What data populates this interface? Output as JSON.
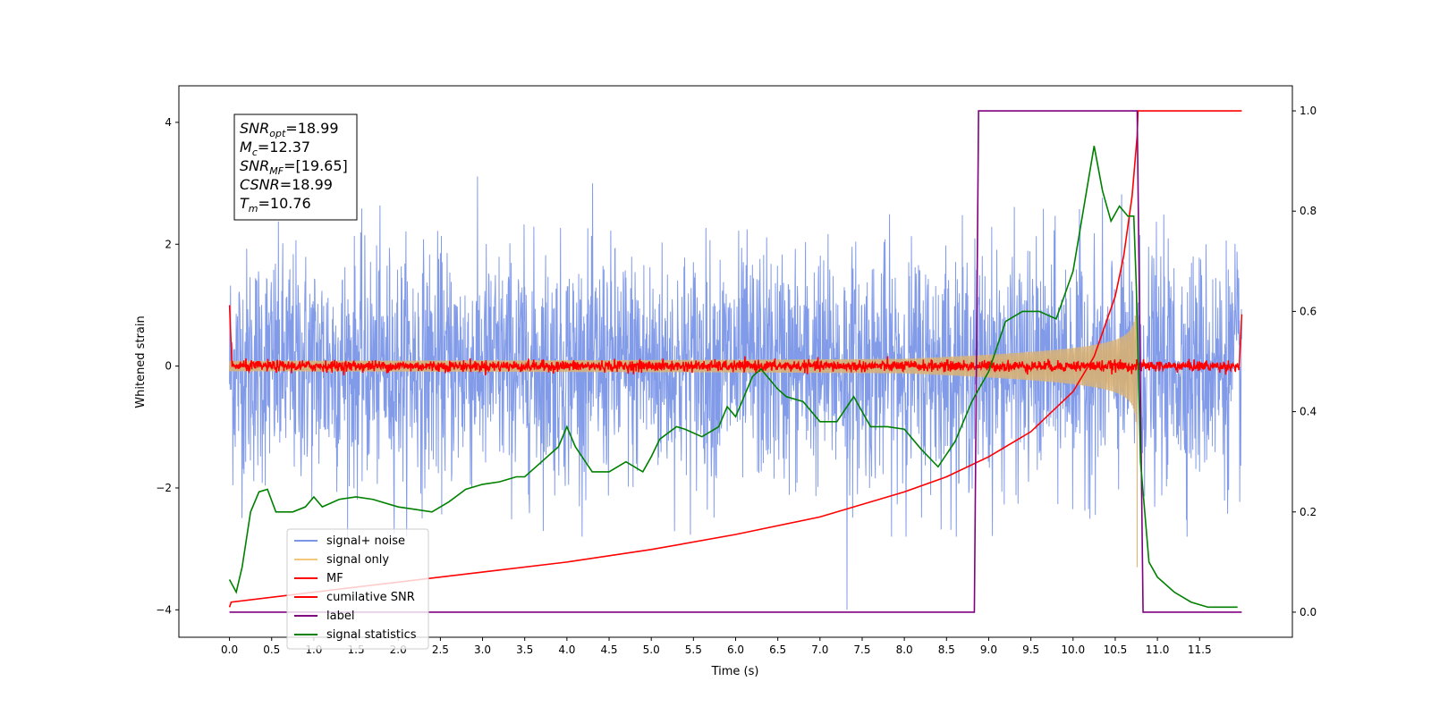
{
  "chart_data": {
    "type": "line",
    "title": "",
    "xlabel": "Time (s)",
    "ylabel": "Whitened strain",
    "y2label": "",
    "xlim": [
      -0.6,
      12.6
    ],
    "ylim": [
      -4.45,
      4.6
    ],
    "y2lim": [
      -0.05,
      1.05
    ],
    "x_ticks": [
      "0.0",
      "0.5",
      "1.0",
      "1.5",
      "2.0",
      "2.5",
      "3.0",
      "3.5",
      "4.0",
      "4.5",
      "5.0",
      "5.5",
      "6.0",
      "6.5",
      "7.0",
      "7.5",
      "8.0",
      "8.5",
      "9.0",
      "9.5",
      "10.0",
      "10.5",
      "11.0",
      "11.5"
    ],
    "y_ticks": [
      -4,
      -2,
      0,
      2,
      4
    ],
    "y2_ticks": [
      "0.0",
      "0.2",
      "0.4",
      "0.6",
      "0.8",
      "1.0"
    ],
    "grid": false,
    "legend_position": "lower-left",
    "annotation": {
      "lines": [
        {
          "sym": "SNR",
          "sub": "opt",
          "val": "=18.99"
        },
        {
          "sym": "M",
          "sub": "c",
          "val": "=12.37"
        },
        {
          "sym": "SNR",
          "sub": "MF",
          "val": "=[19.65]"
        },
        {
          "sym": "CSNR",
          "sub": "",
          "val": "=18.99"
        },
        {
          "sym": "T",
          "sub": "m",
          "val": "=10.76"
        }
      ]
    },
    "series": [
      {
        "name": "signal+ noise",
        "color": "#7b96e8",
        "axis": "left",
        "kind": "noise",
        "x_range": [
          0.0,
          12.0
        ],
        "envelope": [
          -2.6,
          3.4
        ]
      },
      {
        "name": "signal only",
        "color": "#f5c77a",
        "axis": "left",
        "kind": "chirp",
        "x_range": [
          0.0,
          10.76
        ],
        "amplitude_end": 3.3
      },
      {
        "name": "MF",
        "color": "#ff0000",
        "axis": "left",
        "kind": "mf",
        "x_range": [
          0.0,
          12.0
        ],
        "start": 1.0,
        "end": 0.85
      },
      {
        "name": "cumilative SNR",
        "color": "#ff0000",
        "axis": "right",
        "x": [
          0.0,
          0.02,
          1.0,
          2.0,
          3.0,
          4.0,
          5.0,
          6.0,
          7.0,
          8.0,
          8.5,
          9.0,
          9.5,
          10.0,
          10.25,
          10.5,
          10.6,
          10.7,
          10.76,
          10.77,
          12.0
        ],
        "y": [
          0.01,
          0.02,
          0.04,
          0.06,
          0.08,
          0.1,
          0.125,
          0.155,
          0.19,
          0.24,
          0.27,
          0.31,
          0.36,
          0.44,
          0.51,
          0.63,
          0.71,
          0.83,
          0.95,
          1.0,
          1.0
        ]
      },
      {
        "name": "label",
        "color": "#800080",
        "axis": "right",
        "x": [
          0.0,
          8.83,
          8.88,
          10.76,
          10.83,
          12.0
        ],
        "y": [
          0.0,
          0.0,
          1.0,
          1.0,
          0.0,
          0.0
        ]
      },
      {
        "name": "signal statistics",
        "color": "#008000",
        "axis": "right",
        "x": [
          0.0,
          0.08,
          0.15,
          0.25,
          0.35,
          0.45,
          0.55,
          0.65,
          0.75,
          0.9,
          1.0,
          1.1,
          1.3,
          1.5,
          1.7,
          2.0,
          2.2,
          2.4,
          2.6,
          2.8,
          3.0,
          3.2,
          3.4,
          3.5,
          3.7,
          3.9,
          4.0,
          4.1,
          4.3,
          4.5,
          4.7,
          4.9,
          5.0,
          5.1,
          5.3,
          5.4,
          5.6,
          5.8,
          5.9,
          6.0,
          6.2,
          6.3,
          6.5,
          6.6,
          6.8,
          7.0,
          7.2,
          7.4,
          7.6,
          7.8,
          8.0,
          8.2,
          8.4,
          8.6,
          8.8,
          9.0,
          9.2,
          9.4,
          9.6,
          9.8,
          10.0,
          10.1,
          10.25,
          10.35,
          10.45,
          10.55,
          10.65,
          10.72,
          10.75,
          10.8,
          10.9,
          11.0,
          11.2,
          11.4,
          11.6,
          11.8,
          11.95
        ],
        "y": [
          0.065,
          0.04,
          0.09,
          0.2,
          0.24,
          0.245,
          0.2,
          0.2,
          0.2,
          0.21,
          0.23,
          0.21,
          0.225,
          0.23,
          0.225,
          0.21,
          0.205,
          0.2,
          0.22,
          0.245,
          0.255,
          0.26,
          0.27,
          0.27,
          0.3,
          0.33,
          0.37,
          0.33,
          0.28,
          0.28,
          0.3,
          0.28,
          0.31,
          0.345,
          0.37,
          0.365,
          0.35,
          0.37,
          0.41,
          0.39,
          0.47,
          0.485,
          0.445,
          0.43,
          0.42,
          0.38,
          0.38,
          0.43,
          0.37,
          0.37,
          0.365,
          0.325,
          0.29,
          0.34,
          0.42,
          0.48,
          0.58,
          0.6,
          0.6,
          0.585,
          0.68,
          0.78,
          0.93,
          0.84,
          0.78,
          0.81,
          0.79,
          0.79,
          0.65,
          0.3,
          0.1,
          0.07,
          0.04,
          0.02,
          0.01,
          0.01,
          0.01
        ]
      }
    ]
  }
}
